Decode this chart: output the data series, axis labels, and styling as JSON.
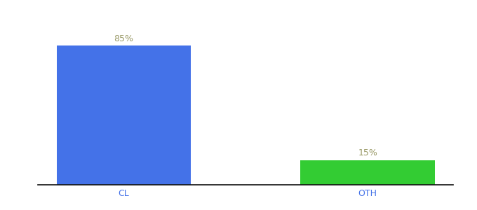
{
  "categories": [
    "CL",
    "OTH"
  ],
  "values": [
    85,
    15
  ],
  "bar_colors": [
    "#4472e8",
    "#33cc33"
  ],
  "label_texts": [
    "85%",
    "15%"
  ],
  "label_color": "#999966",
  "ylim": [
    0,
    100
  ],
  "background_color": "#ffffff",
  "label_fontsize": 9,
  "tick_fontsize": 9,
  "tick_color": "#4472e8",
  "bar_width": 0.55,
  "x_positions": [
    0,
    1
  ],
  "xlim": [
    -0.35,
    1.35
  ]
}
